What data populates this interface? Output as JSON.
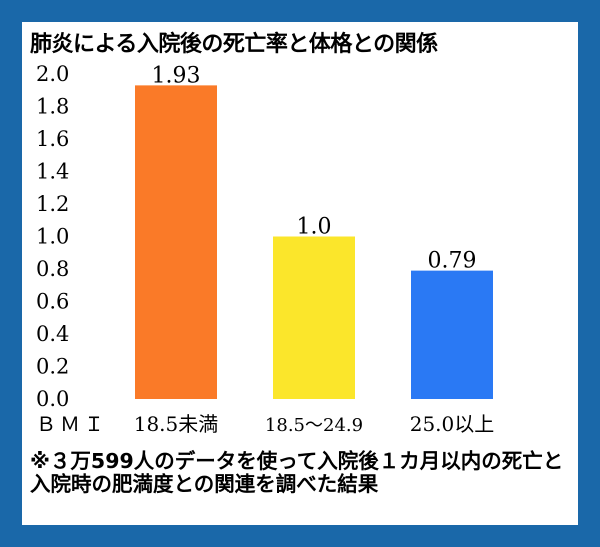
{
  "title": "肺炎による入院後の死亡率と体格との関係",
  "footnote": "※３万599人のデータを使って入院後１カ月以内の死亡と入院時の肥満度との関連を調べた結果",
  "chart_data": {
    "type": "bar",
    "title": "肺炎による入院後の死亡率と体格との関係",
    "xlabel": "ＢＭＩ",
    "ylabel": "",
    "ylim": [
      0,
      2.0
    ],
    "yticks": [
      "0.0",
      "0.2",
      "0.4",
      "0.6",
      "0.8",
      "1.0",
      "1.2",
      "1.4",
      "1.6",
      "1.8",
      "2.0"
    ],
    "categories": [
      "18.5未満",
      "18.5～24.9",
      "25.0以上"
    ],
    "values": [
      1.93,
      1.0,
      0.79
    ],
    "value_labels": [
      "1.93",
      "1.0",
      "0.79"
    ],
    "colors": [
      "#fa7a28",
      "#fbe62b",
      "#2a79f4"
    ],
    "grid": false,
    "legend": "none"
  }
}
